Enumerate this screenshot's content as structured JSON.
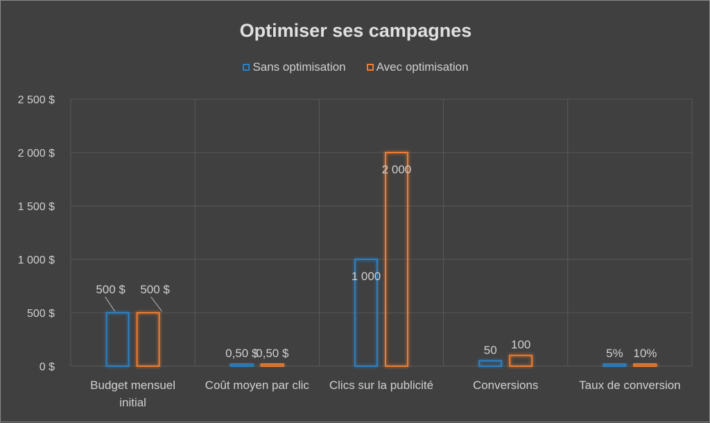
{
  "chart_data": {
    "type": "bar",
    "title": "Optimiser ses campagnes",
    "categories": [
      "Budget mensuel initial",
      "Coût moyen par clic",
      "Clics sur la publicité",
      "Conversions",
      "Taux de conversion"
    ],
    "category_lines": [
      [
        "Budget mensuel",
        "initial"
      ],
      [
        "Coût moyen par clic"
      ],
      [
        "Clics sur la publicité"
      ],
      [
        "Conversions"
      ],
      [
        "Taux de conversion"
      ]
    ],
    "series": [
      {
        "name": "Sans optimisation",
        "color": "#2e7fbf",
        "values": [
          500,
          0.5,
          1000,
          50,
          0.05
        ],
        "labels": [
          "500 $",
          "0,50 $",
          "1 000",
          "50",
          "5%"
        ]
      },
      {
        "name": "Avec optimisation",
        "color": "#ed7d31",
        "values": [
          500,
          0.5,
          2000,
          100,
          0.1
        ],
        "labels": [
          "500 $",
          "0,50 $",
          "2 000",
          "100",
          "10%"
        ]
      }
    ],
    "ylim": [
      0,
      2500
    ],
    "yticks": [
      0,
      500,
      1000,
      1500,
      2000,
      2500
    ],
    "ytick_labels": [
      "0 $",
      "500 $",
      "1 000 $",
      "1 500 $",
      "2 000 $",
      "2 500 $"
    ],
    "grid": true,
    "legend_position": "top"
  }
}
